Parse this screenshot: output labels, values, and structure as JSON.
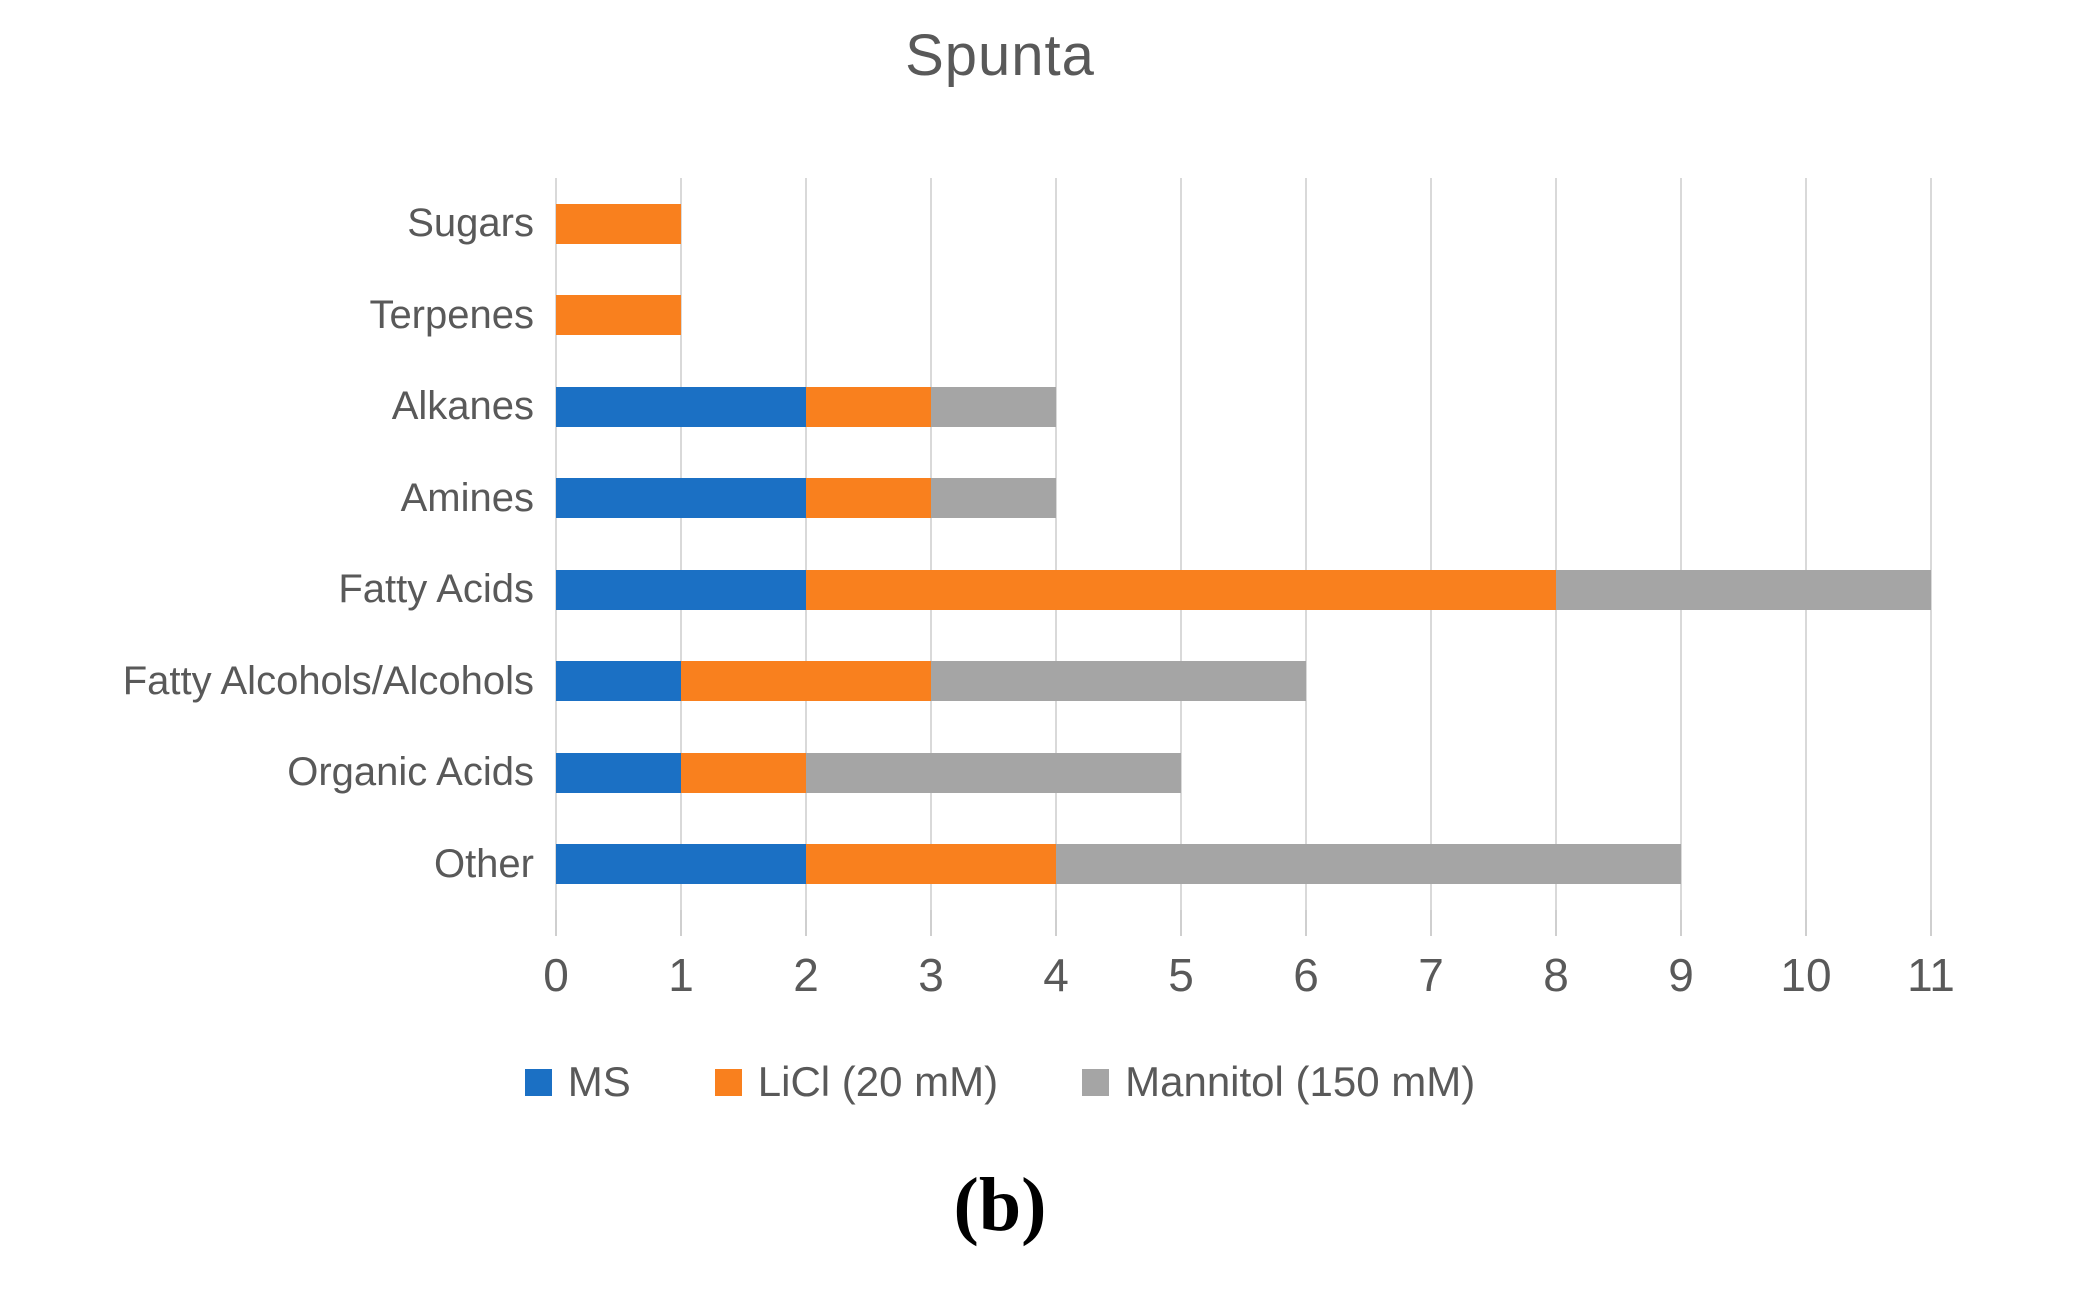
{
  "figure_label": "(b)",
  "colors": {
    "ms_blue": "#1B70C4",
    "licl_orange": "#F9801E",
    "mannitol_gray": "#A5A5A5",
    "text_gray": "#595959",
    "gridline": "#D9D9D9"
  },
  "chart_data": {
    "type": "bar",
    "orientation": "horizontal",
    "stacked": true,
    "title": "Spunta",
    "categories": [
      "Sugars",
      "Terpenes",
      "Alkanes",
      "Amines",
      "Fatty Acids",
      "Fatty Alcohols/Alcohols",
      "Organic Acids",
      "Other"
    ],
    "series": [
      {
        "name": "MS",
        "color": "#1B70C4",
        "values": [
          0,
          0,
          2,
          2,
          2,
          1,
          1,
          2
        ]
      },
      {
        "name": "LiCl (20 mM)",
        "color": "#F9801E",
        "values": [
          1,
          1,
          1,
          1,
          6,
          2,
          1,
          2
        ]
      },
      {
        "name": "Mannitol (150 mM)",
        "color": "#A5A5A5",
        "values": [
          0,
          0,
          1,
          1,
          3,
          3,
          3,
          5
        ]
      }
    ],
    "totals": [
      1,
      1,
      4,
      4,
      11,
      6,
      5,
      9
    ],
    "xlabel": "",
    "ylabel": "",
    "xlim": [
      0,
      11
    ],
    "x_ticks": [
      0,
      1,
      2,
      3,
      4,
      5,
      6,
      7,
      8,
      9,
      10,
      11
    ],
    "grid": true,
    "legend_position": "bottom"
  }
}
